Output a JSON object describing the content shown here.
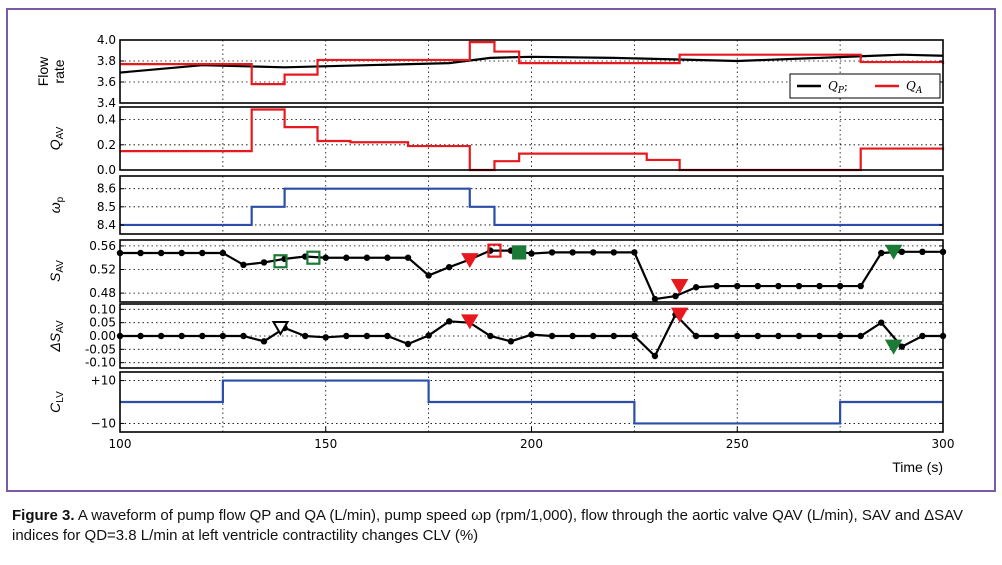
{
  "caption": {
    "label": "Figure 3.",
    "text": "A waveform of pump flow QP and QA (L/min), pump speed ωp (rpm/1,000), flow through the aortic valve QAV (L/min), SAV and ΔSAV indices for QD=3.8 L/min at left ventricle contractility changes CLV (%)"
  },
  "x_axis": {
    "label": "Time (s)",
    "range": [
      100,
      300
    ],
    "ticks": [
      100,
      150,
      200,
      250,
      300
    ]
  },
  "colors": {
    "frame": "#7b5ba6",
    "qp": "#000000",
    "qa": "#e8191e",
    "blue": "#2b4fa8",
    "red_marker": "#e8191e",
    "green_marker": "#1a7a36"
  },
  "chart_data": [
    {
      "id": "flow",
      "type": "line",
      "ylabel": "Flow rate",
      "ylim": [
        3.4,
        4.0
      ],
      "yticks": [
        "4.0",
        "3.8",
        "3.6",
        "3.4"
      ],
      "ytick_values": [
        4.0,
        3.8,
        3.6,
        3.4
      ],
      "grid": true,
      "legend": {
        "position": "right",
        "entries": [
          "QP;",
          "QA"
        ]
      },
      "series": [
        {
          "name": "QP",
          "color": "#000000",
          "step": false,
          "x": [
            100,
            120,
            140,
            160,
            180,
            190,
            200,
            220,
            250,
            270,
            290,
            300
          ],
          "y": [
            3.69,
            3.76,
            3.74,
            3.76,
            3.78,
            3.83,
            3.84,
            3.83,
            3.8,
            3.83,
            3.86,
            3.85
          ]
        },
        {
          "name": "QA",
          "color": "#e8191e",
          "step": true,
          "x": [
            100,
            132,
            140,
            148,
            185,
            191,
            197,
            236,
            280,
            300
          ],
          "y": [
            3.77,
            3.58,
            3.67,
            3.81,
            3.98,
            3.89,
            3.78,
            3.86,
            3.79,
            3.77
          ]
        }
      ]
    },
    {
      "id": "qav",
      "type": "line",
      "ylabel": "QAV",
      "ylim": [
        0,
        0.5
      ],
      "yticks": [
        "0.4",
        "0.2",
        "0.0"
      ],
      "ytick_values": [
        0.4,
        0.2,
        0.0
      ],
      "grid": true,
      "series": [
        {
          "name": "QAV",
          "color": "#e8191e",
          "step": true,
          "x": [
            100,
            132,
            140,
            148,
            156,
            170,
            185,
            191,
            197,
            206,
            228,
            236,
            280,
            300
          ],
          "y": [
            0.15,
            0.48,
            0.34,
            0.23,
            0.22,
            0.19,
            0.0,
            0.07,
            0.13,
            0.13,
            0.08,
            0.0,
            0.17,
            0.16
          ]
        }
      ]
    },
    {
      "id": "wp",
      "type": "line",
      "ylabel": "ωp",
      "ylim": [
        8.35,
        8.67
      ],
      "yticks": [
        "8.6",
        "8.5",
        "8.4"
      ],
      "ytick_values": [
        8.6,
        8.5,
        8.4
      ],
      "grid": true,
      "series": [
        {
          "name": "ωp",
          "color": "#2b4fa8",
          "step": true,
          "x": [
            100,
            132,
            140,
            185,
            191,
            300
          ],
          "y": [
            8.4,
            8.5,
            8.6,
            8.5,
            8.4,
            8.4
          ]
        }
      ]
    },
    {
      "id": "sav",
      "type": "line",
      "ylabel": "SAV",
      "ylim": [
        0.465,
        0.57
      ],
      "yticks": [
        "0.56",
        "0.52",
        "0.48"
      ],
      "ytick_values": [
        0.56,
        0.52,
        0.48
      ],
      "grid": true,
      "series": [
        {
          "name": "SAV",
          "color": "#000000",
          "step": false,
          "x": [
            100,
            105,
            110,
            115,
            120,
            125,
            130,
            135,
            140,
            145,
            150,
            155,
            160,
            165,
            170,
            175,
            180,
            185,
            190,
            195,
            200,
            205,
            210,
            215,
            220,
            225,
            230,
            235,
            240,
            245,
            250,
            255,
            260,
            265,
            270,
            275,
            280,
            285,
            290,
            295,
            300
          ],
          "y": [
            0.548,
            0.548,
            0.548,
            0.548,
            0.548,
            0.548,
            0.528,
            0.532,
            0.538,
            0.542,
            0.54,
            0.54,
            0.54,
            0.54,
            0.54,
            0.51,
            0.524,
            0.537,
            0.552,
            0.552,
            0.547,
            0.549,
            0.549,
            0.549,
            0.549,
            0.549,
            0.47,
            0.475,
            0.49,
            0.492,
            0.492,
            0.492,
            0.492,
            0.492,
            0.492,
            0.492,
            0.492,
            0.548,
            0.55,
            0.55,
            0.55
          ]
        }
      ],
      "markers": [
        {
          "x": 139,
          "y": 0.534,
          "shape": "square",
          "color": "#1a7a36",
          "filled": false
        },
        {
          "x": 147,
          "y": 0.54,
          "shape": "square",
          "color": "#1a7a36",
          "filled": false
        },
        {
          "x": 185,
          "y": 0.536,
          "shape": "triangle-down",
          "color": "#e8191e",
          "filled": true
        },
        {
          "x": 191,
          "y": 0.552,
          "shape": "square",
          "color": "#e8191e",
          "filled": false
        },
        {
          "x": 197,
          "y": 0.549,
          "shape": "square",
          "color": "#1a7a36",
          "filled": true
        },
        {
          "x": 236,
          "y": 0.492,
          "shape": "triangle-down",
          "color": "#e8191e",
          "filled": true
        },
        {
          "x": 288,
          "y": 0.55,
          "shape": "triangle-down",
          "color": "#1a7a36",
          "filled": true
        }
      ]
    },
    {
      "id": "dsav",
      "type": "line",
      "ylabel": "ΔSAV",
      "ylim": [
        -0.12,
        0.12
      ],
      "yticks": [
        "0.10",
        "0.05",
        "0.00",
        "-0.05",
        "-0.10"
      ],
      "ytick_values": [
        0.1,
        0.05,
        0.0,
        -0.05,
        -0.1
      ],
      "grid": true,
      "series": [
        {
          "name": "ΔSAV",
          "color": "#000000",
          "step": false,
          "x": [
            100,
            105,
            110,
            115,
            120,
            125,
            130,
            135,
            140,
            145,
            150,
            155,
            160,
            165,
            170,
            175,
            180,
            185,
            190,
            195,
            200,
            205,
            210,
            215,
            220,
            225,
            230,
            235,
            240,
            245,
            250,
            255,
            260,
            265,
            270,
            275,
            280,
            285,
            290,
            295,
            300
          ],
          "y": [
            0,
            0,
            0,
            0,
            0,
            0,
            0,
            -0.02,
            0.03,
            0,
            -0.005,
            0,
            0,
            0,
            -0.03,
            0.002,
            0.055,
            0.05,
            0,
            -0.02,
            0.005,
            0,
            0,
            0,
            0,
            0,
            -0.075,
            0.08,
            0,
            0,
            0,
            0,
            0,
            0,
            0,
            0,
            0,
            0.05,
            -0.04,
            0,
            0
          ]
        }
      ],
      "markers": [
        {
          "x": 139,
          "y": 0.03,
          "shape": "triangle-down",
          "color": "#000000",
          "filled": false
        },
        {
          "x": 185,
          "y": 0.055,
          "shape": "triangle-down",
          "color": "#e8191e",
          "filled": true
        },
        {
          "x": 236,
          "y": 0.08,
          "shape": "triangle-down",
          "color": "#e8191e",
          "filled": true
        },
        {
          "x": 288,
          "y": -0.04,
          "shape": "triangle-down",
          "color": "#1a7a36",
          "filled": true
        }
      ]
    },
    {
      "id": "clv",
      "type": "line",
      "ylabel": "CLV",
      "ylim": [
        -14,
        14
      ],
      "yticks": [
        "+10",
        "−10"
      ],
      "ytick_values": [
        10,
        -10
      ],
      "grid": true,
      "series": [
        {
          "name": "CLV",
          "color": "#2b4fa8",
          "step": true,
          "x": [
            100,
            125,
            175,
            225,
            275,
            300
          ],
          "y": [
            0,
            10,
            0,
            -10,
            0,
            0
          ]
        }
      ]
    }
  ]
}
